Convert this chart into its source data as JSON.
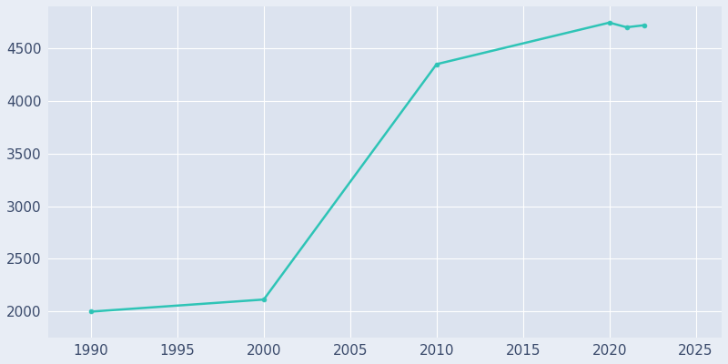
{
  "years": [
    1990,
    2000,
    2010,
    2020,
    2021,
    2022
  ],
  "population": [
    1998,
    2113,
    4350,
    4745,
    4701,
    4720
  ],
  "line_color": "#2ec4b6",
  "marker": "o",
  "marker_size": 3.5,
  "line_width": 1.8,
  "fig_bg_color": "#e8edf5",
  "axes_bg_color": "#dce3ef",
  "grid_color": "#ffffff",
  "tick_color": "#3a4a6b",
  "xlim": [
    1987.5,
    2026.5
  ],
  "ylim": [
    1750,
    4900
  ],
  "yticks": [
    2000,
    2500,
    3000,
    3500,
    4000,
    4500
  ],
  "xticks": [
    1990,
    1995,
    2000,
    2005,
    2010,
    2015,
    2020,
    2025
  ],
  "tick_fontsize": 11,
  "figsize": [
    8.0,
    4.0
  ],
  "dpi": 100
}
